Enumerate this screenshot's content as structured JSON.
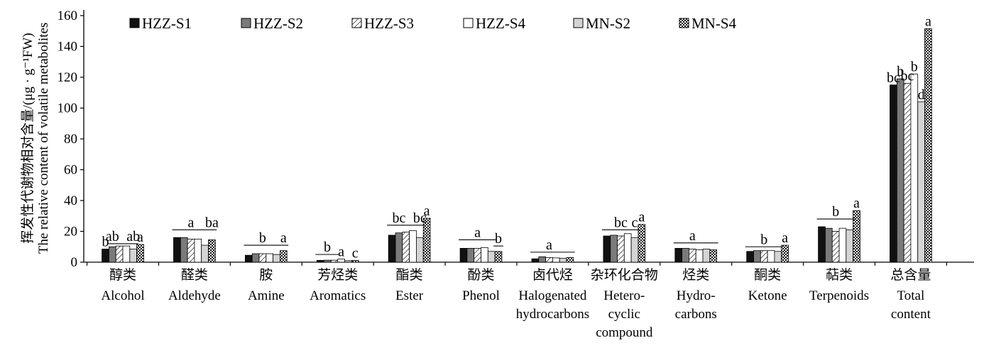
{
  "chart_data": {
    "type": "bar",
    "ylabel_zh": "挥发性代谢物相对含量/(μg · g⁻¹FW)",
    "ylabel_en": "The relative content of volatile metabolites",
    "ylim": [
      0,
      160
    ],
    "yticks": [
      "0",
      "20",
      "40",
      "60",
      "80",
      "100",
      "120",
      "140",
      "160"
    ],
    "grid": false,
    "legend_position": "top",
    "categories": [
      {
        "zh": "醇类",
        "en": [
          "Alcohol"
        ]
      },
      {
        "zh": "醛类",
        "en": [
          "Aldehyde"
        ]
      },
      {
        "zh": "胺",
        "en": [
          "Amine"
        ]
      },
      {
        "zh": "芳烃类",
        "en": [
          "Aromatics"
        ]
      },
      {
        "zh": "酯类",
        "en": [
          "Ester"
        ]
      },
      {
        "zh": "酚类",
        "en": [
          "Phenol"
        ]
      },
      {
        "zh": "卤代烃",
        "en": [
          "Halogenated",
          "hydrocarbons"
        ]
      },
      {
        "zh": "杂环化合物",
        "en": [
          "Hetero-",
          "cyclic",
          "compound"
        ]
      },
      {
        "zh": "烃类",
        "en": [
          "Hydro-",
          "carbons"
        ]
      },
      {
        "zh": "酮类",
        "en": [
          "Ketone"
        ]
      },
      {
        "zh": "萜类",
        "en": [
          "Terpenoids"
        ]
      },
      {
        "zh": "总含量",
        "en": [
          "Total",
          "content"
        ]
      }
    ],
    "series": [
      {
        "name": "HZZ-S1",
        "pattern": "solid-black",
        "values": [
          8.5,
          16,
          4.5,
          1.2,
          17.5,
          9,
          2.2,
          17,
          9,
          7,
          23,
          115
        ]
      },
      {
        "name": "HZZ-S2",
        "pattern": "solid-gray",
        "values": [
          10,
          16,
          5.5,
          1.3,
          19,
          9,
          3.5,
          17.5,
          9,
          7.5,
          22,
          119
        ]
      },
      {
        "name": "HZZ-S3",
        "pattern": "hatched",
        "values": [
          10.5,
          15,
          5.5,
          1.3,
          19.5,
          9,
          3,
          17,
          8.5,
          7.5,
          20,
          116
        ]
      },
      {
        "name": "HZZ-S4",
        "pattern": "white",
        "values": [
          10.5,
          15,
          5.5,
          2,
          20.5,
          9.5,
          2.8,
          18.5,
          8,
          7.5,
          22,
          122
        ]
      },
      {
        "name": "MN-S2",
        "pattern": "light-gray",
        "values": [
          8.5,
          11,
          5,
          1,
          16,
          7,
          2.5,
          16,
          8.5,
          7,
          21,
          104
        ]
      },
      {
        "name": "MN-S4",
        "pattern": "checkered",
        "values": [
          11.5,
          14.5,
          7.5,
          1.2,
          28.5,
          7,
          3,
          24.5,
          8,
          11,
          33.5,
          151.5
        ]
      }
    ],
    "significance_labels": [
      {
        "category": 0,
        "bar": 0,
        "text": "b"
      },
      {
        "category": 0,
        "bar": 1,
        "text": "ab"
      },
      {
        "category": 0,
        "bar": 4,
        "text": "ab"
      },
      {
        "category": 0,
        "bar": 5,
        "text": "a"
      },
      {
        "category": 1,
        "bar": 2,
        "text": "a"
      },
      {
        "category": 1,
        "bar": 5,
        "text": "ba"
      },
      {
        "category": 2,
        "bar": 2,
        "text": "b"
      },
      {
        "category": 2,
        "bar": 5,
        "text": "a"
      },
      {
        "category": 3,
        "bar": 1,
        "text": "b"
      },
      {
        "category": 3,
        "bar": 3,
        "text": "a"
      },
      {
        "category": 3,
        "bar": 5,
        "text": "c"
      },
      {
        "category": 4,
        "bar": 1,
        "text": "bc"
      },
      {
        "category": 4,
        "bar": 4,
        "text": "bc"
      },
      {
        "category": 4,
        "bar": 5,
        "text": "a"
      },
      {
        "category": 5,
        "bar": 2,
        "text": "a"
      },
      {
        "category": 5,
        "bar": 5,
        "text": "b"
      },
      {
        "category": 6,
        "bar": 2,
        "text": "a"
      },
      {
        "category": 7,
        "bar": 2,
        "text": "bc"
      },
      {
        "category": 7,
        "bar": 4,
        "text": "c"
      },
      {
        "category": 7,
        "bar": 5,
        "text": "a"
      },
      {
        "category": 8,
        "bar": 2,
        "text": "a"
      },
      {
        "category": 9,
        "bar": 2,
        "text": "b"
      },
      {
        "category": 9,
        "bar": 5,
        "text": "a"
      },
      {
        "category": 10,
        "bar": 2,
        "text": "b"
      },
      {
        "category": 10,
        "bar": 5,
        "text": "a"
      },
      {
        "category": 11,
        "bar": 0,
        "text": "bc"
      },
      {
        "category": 11,
        "bar": 1,
        "text": "b"
      },
      {
        "category": 11,
        "bar": 2,
        "text": "bc"
      },
      {
        "category": 11,
        "bar": 3,
        "text": "b"
      },
      {
        "category": 11,
        "bar": 4,
        "text": "d"
      },
      {
        "category": 11,
        "bar": 5,
        "text": "a"
      }
    ],
    "group_lines": [
      {
        "category": 0,
        "from": 1,
        "to": 4,
        "value": 12
      },
      {
        "category": 1,
        "from": 0,
        "to": 5,
        "value": 21
      },
      {
        "category": 2,
        "from": 0,
        "to": 5,
        "value": 11
      },
      {
        "category": 3,
        "from": 0,
        "to": 2,
        "value": 5
      },
      {
        "category": 4,
        "from": 0,
        "to": 4,
        "value": 24
      },
      {
        "category": 5,
        "from": 0,
        "to": 4,
        "value": 14.5
      },
      {
        "category": 5,
        "from": 5,
        "to": 5,
        "value": 10.5
      },
      {
        "category": 6,
        "from": 0,
        "to": 5,
        "value": 6.5
      },
      {
        "category": 7,
        "from": 0,
        "to": 4,
        "value": 21
      },
      {
        "category": 8,
        "from": 0,
        "to": 5,
        "value": 12.5
      },
      {
        "category": 9,
        "from": 0,
        "to": 4,
        "value": 10
      },
      {
        "category": 10,
        "from": 0,
        "to": 4,
        "value": 28
      }
    ]
  }
}
